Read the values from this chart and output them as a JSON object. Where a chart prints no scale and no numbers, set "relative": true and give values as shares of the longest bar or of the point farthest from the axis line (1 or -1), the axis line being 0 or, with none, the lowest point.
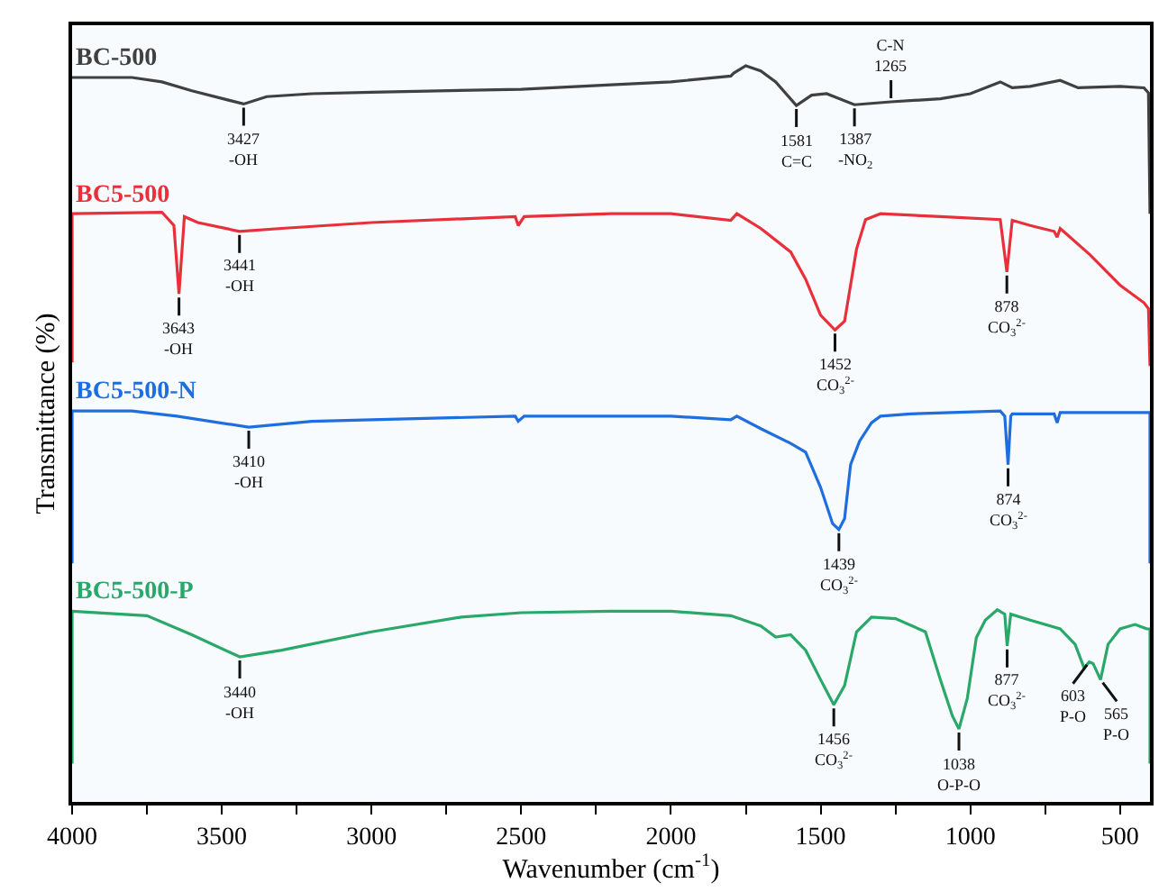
{
  "chart_data": {
    "type": "line",
    "relative": true,
    "xlabel": "Wavenumber (cm$^{-1}$)",
    "ylabel": "Transmittance (%)",
    "xlim": [
      4000,
      400
    ],
    "xticks": [
      4000,
      {
        "value": 3750,
        "label": null
      },
      3500,
      {
        "value": 3250,
        "label": null
      },
      3000,
      {
        "value": 2750,
        "label": null
      },
      2500,
      {
        "value": 2250,
        "label": null
      },
      2000,
      {
        "value": 1750,
        "label": null
      },
      1500,
      {
        "value": 1250,
        "label": null
      },
      1000,
      {
        "value": 750,
        "label": null
      },
      500
    ],
    "tick_labels": "x",
    "grid": false,
    "legend": false,
    "marker": "none",
    "line_style": "solid",
    "series": [
      {
        "name": "BC-500",
        "color": "#404040",
        "x": [
          4000,
          3800,
          3700,
          3600,
          3427,
          3350,
          3200,
          3000,
          2500,
          2200,
          2000,
          1800,
          1790,
          1750,
          1700,
          1650,
          1581,
          1530,
          1480,
          1387,
          1265,
          1100,
          1000,
          900,
          860,
          800,
          700,
          640,
          500,
          420,
          405,
          400
        ],
        "values": [
          0.984,
          0.984,
          0.978,
          0.966,
          0.948,
          0.958,
          0.962,
          0.964,
          0.968,
          0.974,
          0.978,
          0.986,
          0.99,
          1.0,
          0.993,
          0.978,
          0.946,
          0.96,
          0.962,
          0.947,
          0.951,
          0.955,
          0.962,
          0.978,
          0.97,
          0.972,
          0.98,
          0.97,
          0.972,
          0.97,
          0.963,
          0.799
        ]
      },
      {
        "name": "BC5-500",
        "color": "#e8303a",
        "x": [
          4000,
          4000,
          3700,
          3660,
          3643,
          3625,
          3580,
          3441,
          3300,
          3000,
          2520,
          2510,
          2490,
          2200,
          2000,
          1800,
          1780,
          1700,
          1600,
          1550,
          1500,
          1452,
          1420,
          1380,
          1350,
          1300,
          1100,
          900,
          878,
          860,
          800,
          720,
          710,
          700,
          600,
          500,
          420,
          405,
          400
        ],
        "values": [
          0.597,
          0.799,
          0.801,
          0.783,
          0.69,
          0.795,
          0.787,
          0.775,
          0.779,
          0.787,
          0.795,
          0.783,
          0.795,
          0.799,
          0.799,
          0.79,
          0.799,
          0.779,
          0.747,
          0.71,
          0.661,
          0.641,
          0.653,
          0.751,
          0.791,
          0.799,
          0.795,
          0.791,
          0.72,
          0.79,
          0.783,
          0.775,
          0.767,
          0.779,
          0.743,
          0.702,
          0.678,
          0.67,
          0.592
        ]
      },
      {
        "name": "BC5-500-N",
        "color": "#1f6ee0",
        "x": [
          4000,
          4000,
          3800,
          3650,
          3410,
          3200,
          3000,
          2520,
          2510,
          2490,
          2200,
          2000,
          1800,
          1780,
          1700,
          1600,
          1550,
          1500,
          1460,
          1439,
          1420,
          1400,
          1370,
          1330,
          1300,
          1200,
          900,
          885,
          874,
          865,
          860,
          720,
          710,
          700,
          420,
          400,
          400
        ],
        "values": [
          0.324,
          0.531,
          0.531,
          0.524,
          0.509,
          0.517,
          0.519,
          0.524,
          0.517,
          0.524,
          0.524,
          0.524,
          0.519,
          0.524,
          0.507,
          0.487,
          0.475,
          0.427,
          0.378,
          0.37,
          0.385,
          0.458,
          0.49,
          0.515,
          0.524,
          0.527,
          0.531,
          0.524,
          0.458,
          0.524,
          0.527,
          0.527,
          0.515,
          0.529,
          0.529,
          0.529,
          0.324
        ]
      },
      {
        "name": "BC5-500-P",
        "color": "#2aa86a",
        "x": [
          4000,
          4000,
          3750,
          3600,
          3440,
          3300,
          3000,
          2700,
          2500,
          2200,
          2000,
          1800,
          1700,
          1650,
          1600,
          1550,
          1500,
          1456,
          1420,
          1380,
          1330,
          1250,
          1150,
          1100,
          1060,
          1038,
          1010,
          980,
          950,
          910,
          885,
          877,
          865,
          800,
          700,
          650,
          620,
          603,
          590,
          565,
          540,
          500,
          450,
          410,
          400,
          400
        ],
        "values": [
          0.052,
          0.259,
          0.253,
          0.227,
          0.197,
          0.206,
          0.231,
          0.251,
          0.257,
          0.259,
          0.259,
          0.253,
          0.239,
          0.224,
          0.227,
          0.206,
          0.166,
          0.132,
          0.158,
          0.231,
          0.251,
          0.249,
          0.231,
          0.166,
          0.117,
          0.099,
          0.141,
          0.223,
          0.247,
          0.261,
          0.255,
          0.212,
          0.255,
          0.247,
          0.235,
          0.214,
          0.182,
          0.19,
          0.188,
          0.166,
          0.214,
          0.235,
          0.241,
          0.235,
          0.235,
          0.052
        ]
      }
    ],
    "annotations": [
      {
        "text": "3427\n-OH",
        "x": 3427,
        "y": 0.948
      },
      {
        "text": "1581\nC=C",
        "x": 1581,
        "y": 0.946
      },
      {
        "text": "1387\n-NO$_{2}$",
        "x": 1387,
        "y": 0.947
      },
      {
        "text": "C-N\n1265",
        "x": 1265,
        "y": 0.951
      },
      {
        "text": "3643\n-OH",
        "x": 3643,
        "y": 0.69
      },
      {
        "text": "3441\n-OH",
        "x": 3441,
        "y": 0.775
      },
      {
        "text": "1452\nCO$_{3}$$^{2-}$",
        "x": 1452,
        "y": 0.641
      },
      {
        "text": "878\nCO$_{3}$$^{2-}$",
        "x": 878,
        "y": 0.72
      },
      {
        "text": "3410\n-OH",
        "x": 3410,
        "y": 0.509
      },
      {
        "text": "1439\nCO$_{3}$$^{2-}$",
        "x": 1439,
        "y": 0.37
      },
      {
        "text": "874\nCO$_{3}$$^{2-}$",
        "x": 874,
        "y": 0.458
      },
      {
        "text": "3440\n-OH",
        "x": 3440,
        "y": 0.197
      },
      {
        "text": "1456\nCO$_{3}$$^{2-}$",
        "x": 1456,
        "y": 0.132
      },
      {
        "text": "1038\nO-P-O",
        "x": 1038,
        "y": 0.099
      },
      {
        "text": "877\nCO$_{3}$$^{2-}$",
        "x": 877,
        "y": 0.212
      },
      {
        "text": "603\nP-O",
        "x": 603,
        "y": 0.19
      },
      {
        "text": "565\nP-O",
        "x": 565,
        "y": 0.166
      }
    ]
  }
}
